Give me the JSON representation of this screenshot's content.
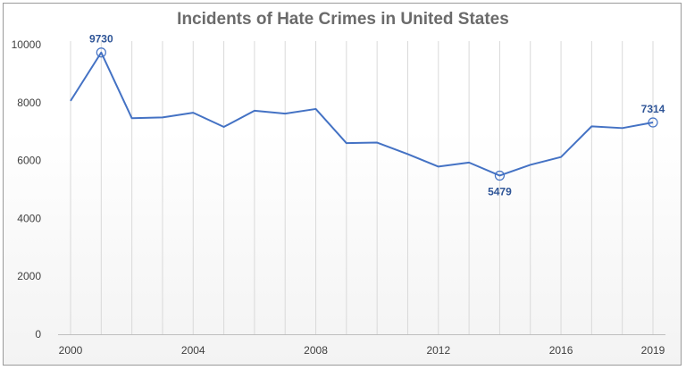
{
  "chart_data": {
    "type": "line",
    "title": "Incidents of Hate Crimes in United States",
    "x": [
      2000,
      2001,
      2002,
      2003,
      2004,
      2005,
      2006,
      2007,
      2008,
      2009,
      2010,
      2011,
      2012,
      2013,
      2014,
      2015,
      2016,
      2017,
      2018,
      2019
    ],
    "series": [
      {
        "name": "Incidents",
        "values": [
          8060,
          9730,
          7460,
          7490,
          7650,
          7160,
          7720,
          7620,
          7780,
          6600,
          6620,
          6220,
          5790,
          5930,
          5479,
          5850,
          6120,
          7180,
          7120,
          7314
        ]
      }
    ],
    "xtick_labels": [
      "2000",
      "2004",
      "2008",
      "2012",
      "2016",
      "2019"
    ],
    "ytick_labels": [
      "0",
      "2000",
      "4000",
      "6000",
      "8000",
      "10000"
    ],
    "ylim": [
      0,
      10000
    ],
    "annotations": [
      {
        "x": 2001,
        "label": "9730",
        "position": "above"
      },
      {
        "x": 2014,
        "label": "5479",
        "position": "below"
      },
      {
        "x": 2019,
        "label": "7314",
        "position": "above"
      }
    ],
    "xlabel": "",
    "ylabel": "",
    "grid": "vertical",
    "line_color": "#4472c4",
    "label_color": "#2f5597"
  }
}
